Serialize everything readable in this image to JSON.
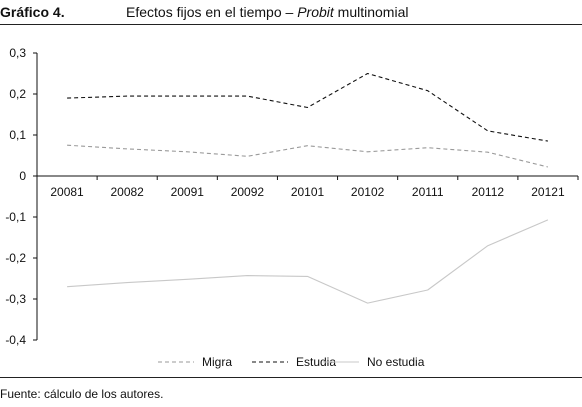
{
  "header": {
    "figure_label": "Gráfico 4.",
    "title_prefix": "Efectos fijos en el tiempo – ",
    "title_italic": "Probit",
    "title_suffix": " multinomial"
  },
  "footer": {
    "source": "Fuente: cálculo de los autores."
  },
  "chart_data": {
    "type": "line",
    "title": "",
    "xlabel": "",
    "ylabel": "",
    "categories": [
      "20081",
      "20082",
      "20091",
      "20092",
      "20101",
      "20102",
      "20111",
      "20112",
      "20121"
    ],
    "ylim": [
      -0.4,
      0.3
    ],
    "yticks": [
      0.3,
      0.2,
      0.1,
      0,
      -0.1,
      -0.2,
      -0.3,
      -0.4
    ],
    "ytick_labels": [
      "0,3",
      "0,2",
      "0,1",
      "0",
      "-0,1",
      "-0,2",
      "-0,3",
      "-0,4"
    ],
    "grid": false,
    "legend_position": "bottom",
    "series": [
      {
        "name": "Migra",
        "style": "dashed",
        "color": "#9a9a9a",
        "values": [
          0.075,
          0.066,
          0.059,
          0.048,
          0.074,
          0.059,
          0.069,
          0.058,
          0.022
        ]
      },
      {
        "name": "Estudia",
        "style": "dashed",
        "color": "#111111",
        "values": [
          0.19,
          0.195,
          0.195,
          0.195,
          0.167,
          0.25,
          0.208,
          0.11,
          0.085
        ]
      },
      {
        "name": "No estudia",
        "style": "solid",
        "color": "#c8c8c8",
        "values": [
          -0.27,
          -0.26,
          -0.252,
          -0.243,
          -0.245,
          -0.31,
          -0.278,
          -0.17,
          -0.107
        ]
      }
    ]
  }
}
